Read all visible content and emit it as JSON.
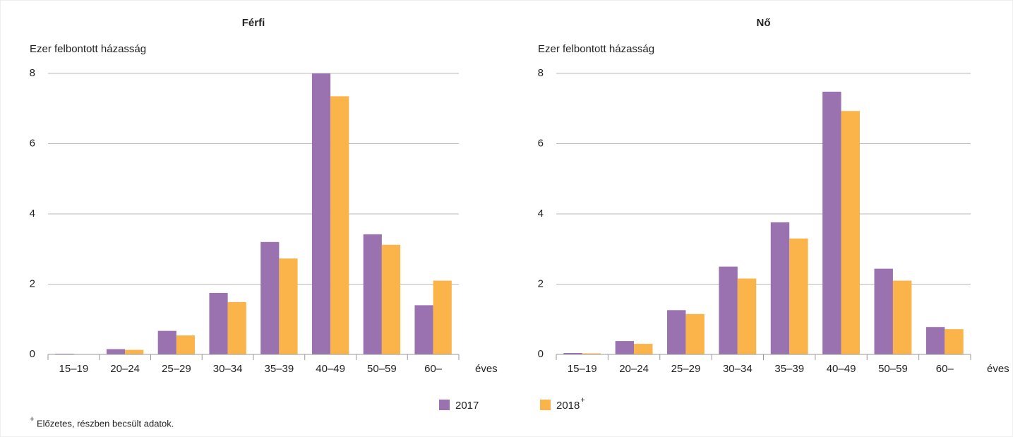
{
  "chart_data": [
    {
      "type": "bar",
      "title": "Férfi",
      "y_label": "Ezer felbontott házasság",
      "x_unit": "éves",
      "categories": [
        "15–19",
        "20–24",
        "25–29",
        "30–34",
        "35–39",
        "40–49",
        "50–59",
        "60–"
      ],
      "series": [
        {
          "name": "2017",
          "color": "#9b72b0",
          "values": [
            0.02,
            0.15,
            0.67,
            1.75,
            3.2,
            8.0,
            3.42,
            1.4
          ]
        },
        {
          "name": "2018",
          "name_sup": "+",
          "color": "#fbb44a",
          "values": [
            0.01,
            0.13,
            0.54,
            1.49,
            2.73,
            7.35,
            3.12,
            2.1
          ]
        }
      ],
      "ylim": [
        0,
        8
      ],
      "yticks": [
        0,
        2,
        4,
        6,
        8
      ],
      "grid": true
    },
    {
      "type": "bar",
      "title": "Nő",
      "y_label": "Ezer felbontott házasság",
      "x_unit": "éves",
      "categories": [
        "15–19",
        "20–24",
        "25–29",
        "30–34",
        "35–39",
        "40–49",
        "50–59",
        "60–"
      ],
      "series": [
        {
          "name": "2017",
          "color": "#9b72b0",
          "values": [
            0.04,
            0.38,
            1.26,
            2.5,
            3.76,
            7.48,
            2.44,
            0.78
          ]
        },
        {
          "name": "2018",
          "name_sup": "+",
          "color": "#fbb44a",
          "values": [
            0.03,
            0.3,
            1.15,
            2.16,
            3.3,
            6.93,
            2.1,
            0.72
          ]
        }
      ],
      "ylim": [
        0,
        8
      ],
      "yticks": [
        0,
        2,
        4,
        6,
        8
      ],
      "grid": true
    }
  ],
  "footnote": {
    "marker": "+",
    "text": "Előzetes, részben becsült adatok."
  }
}
